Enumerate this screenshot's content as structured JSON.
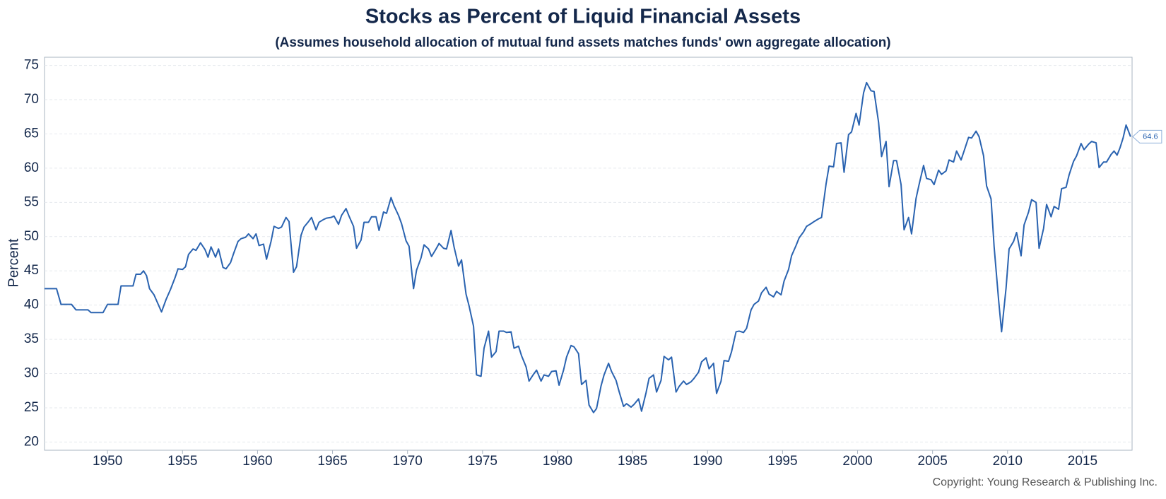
{
  "chart_data": {
    "type": "line",
    "title": "Stocks as Percent of Liquid Financial Assets",
    "subtitle": "(Assumes household allocation of mutual fund assets matches funds' own aggregate allocation)",
    "y_label": "Percent",
    "copyright": "Copyright: Young Research & Publishing Inc.",
    "xlim": [
      1945.8,
      2018.3
    ],
    "xticks": [
      1950,
      1955,
      1960,
      1965,
      1970,
      1975,
      1980,
      1985,
      1990,
      1995,
      2000,
      2005,
      2010,
      2015
    ],
    "ylim": [
      18.8,
      76.2
    ],
    "yticks": [
      20,
      25,
      30,
      35,
      40,
      45,
      50,
      55,
      60,
      65,
      70,
      75
    ],
    "grid": true,
    "series": [
      {
        "name": "Stocks as Percent of Liquid Financial Assets",
        "color": "#2a63b0",
        "x": [
          1945.8,
          1946.6,
          1946.9,
          1947.6,
          1947.9,
          1948.7,
          1948.9,
          1949.7,
          1950,
          1950.7,
          1950.9,
          1951.7,
          1951.9,
          1952.2,
          1952.4,
          1952.6,
          1952.8,
          1953.1,
          1953.4,
          1953.6,
          1953.9,
          1954.2,
          1954.5,
          1954.7,
          1955,
          1955.2,
          1955.4,
          1955.7,
          1955.9,
          1956.2,
          1956.5,
          1956.7,
          1956.9,
          1957.2,
          1957.4,
          1957.7,
          1957.9,
          1958.2,
          1958.4,
          1958.7,
          1958.9,
          1959.2,
          1959.4,
          1959.7,
          1959.9,
          1960.1,
          1960.4,
          1960.6,
          1960.9,
          1961.1,
          1961.4,
          1961.6,
          1961.9,
          1962.1,
          1962.4,
          1962.6,
          1962.9,
          1963.1,
          1963.4,
          1963.6,
          1963.9,
          1964.1,
          1964.4,
          1964.6,
          1964.9,
          1965.1,
          1965.4,
          1965.6,
          1965.9,
          1966.1,
          1966.4,
          1966.6,
          1966.9,
          1967.1,
          1967.4,
          1967.6,
          1967.9,
          1968.1,
          1968.4,
          1968.6,
          1968.9,
          1969.1,
          1969.4,
          1969.6,
          1969.9,
          1970.1,
          1970.4,
          1970.6,
          1970.9,
          1971.1,
          1971.4,
          1971.6,
          1971.9,
          1972.1,
          1972.4,
          1972.6,
          1972.9,
          1973.1,
          1973.4,
          1973.6,
          1973.9,
          1974.1,
          1974.4,
          1974.6,
          1974.9,
          1975.1,
          1975.4,
          1975.6,
          1975.9,
          1976.1,
          1976.4,
          1976.6,
          1976.9,
          1977.1,
          1977.4,
          1977.6,
          1977.9,
          1978.1,
          1978.4,
          1978.6,
          1978.9,
          1979.1,
          1979.4,
          1979.6,
          1979.9,
          1980.1,
          1980.4,
          1980.6,
          1980.9,
          1981.1,
          1981.4,
          1981.6,
          1981.9,
          1982.1,
          1982.4,
          1982.6,
          1982.9,
          1983.1,
          1983.4,
          1983.6,
          1983.9,
          1984.1,
          1984.4,
          1984.6,
          1984.9,
          1985.1,
          1985.4,
          1985.6,
          1985.9,
          1986.1,
          1986.4,
          1986.6,
          1986.9,
          1987.1,
          1987.4,
          1987.6,
          1987.9,
          1988.1,
          1988.4,
          1988.6,
          1988.9,
          1989.1,
          1989.4,
          1989.6,
          1989.9,
          1990.1,
          1990.4,
          1990.6,
          1990.9,
          1991.1,
          1991.4,
          1991.6,
          1991.9,
          1992.1,
          1992.4,
          1992.6,
          1992.9,
          1993.1,
          1993.4,
          1993.6,
          1993.9,
          1994.1,
          1994.4,
          1994.6,
          1994.9,
          1995.1,
          1995.4,
          1995.6,
          1995.9,
          1996.1,
          1996.4,
          1996.6,
          1996.9,
          1997.1,
          1997.4,
          1997.6,
          1997.9,
          1998.1,
          1998.4,
          1998.6,
          1998.9,
          1999.1,
          1999.4,
          1999.6,
          1999.9,
          2000.1,
          2000.4,
          2000.6,
          2000.9,
          2001.1,
          2001.4,
          2001.6,
          2001.9,
          2002.1,
          2002.4,
          2002.6,
          2002.9,
          2003.1,
          2003.4,
          2003.6,
          2003.9,
          2004.1,
          2004.4,
          2004.6,
          2004.9,
          2005.1,
          2005.4,
          2005.6,
          2005.9,
          2006.1,
          2006.4,
          2006.6,
          2006.9,
          2007.1,
          2007.4,
          2007.6,
          2007.9,
          2008.1,
          2008.4,
          2008.6,
          2008.9,
          2009.1,
          2009.4,
          2009.6,
          2009.9,
          2010.1,
          2010.4,
          2010.6,
          2010.9,
          2011.1,
          2011.4,
          2011.6,
          2011.9,
          2012.1,
          2012.4,
          2012.6,
          2012.9,
          2013.1,
          2013.4,
          2013.6,
          2013.9,
          2014.1,
          2014.4,
          2014.6,
          2014.9,
          2015.1,
          2015.4,
          2015.6,
          2015.9,
          2016.1,
          2016.4,
          2016.6,
          2016.9,
          2017.1,
          2017.3,
          2017.5,
          2017.7,
          2017.9,
          2018.2
        ],
        "values": [
          42.4,
          42.4,
          40.1,
          40.1,
          39.3,
          39.3,
          38.9,
          38.9,
          40.1,
          40.1,
          42.8,
          42.8,
          44.5,
          44.5,
          45.0,
          44.3,
          42.4,
          41.5,
          40.0,
          39.0,
          40.8,
          42.3,
          44.0,
          45.3,
          45.2,
          45.6,
          47.4,
          48.2,
          48.0,
          49.1,
          48.1,
          47.0,
          48.5,
          47.0,
          48.2,
          45.5,
          45.3,
          46.2,
          47.5,
          49.3,
          49.7,
          49.9,
          50.4,
          49.7,
          50.4,
          48.7,
          48.9,
          46.7,
          49.3,
          51.5,
          51.2,
          51.4,
          52.8,
          52.2,
          44.8,
          45.6,
          50.2,
          51.4,
          52.2,
          52.8,
          51.0,
          52.1,
          52.5,
          52.7,
          52.8,
          53.0,
          51.8,
          53.1,
          54.1,
          53.0,
          51.5,
          48.3,
          49.5,
          52.1,
          52.1,
          52.9,
          52.9,
          50.9,
          53.6,
          53.4,
          55.7,
          54.5,
          53.1,
          51.9,
          49.4,
          48.6,
          42.4,
          45.1,
          46.9,
          48.8,
          48.2,
          47.1,
          48.2,
          49.0,
          48.3,
          48.2,
          50.9,
          48.5,
          45.7,
          46.6,
          41.6,
          39.9,
          36.9,
          29.8,
          29.6,
          33.7,
          36.2,
          32.4,
          33.2,
          36.2,
          36.2,
          36.0,
          36.1,
          33.7,
          34.0,
          32.6,
          31.0,
          28.9,
          29.9,
          30.5,
          28.9,
          29.8,
          29.6,
          30.3,
          30.4,
          28.3,
          30.5,
          32.4,
          34.1,
          33.9,
          32.9,
          28.4,
          29.0,
          25.4,
          24.3,
          24.9,
          28.2,
          29.8,
          31.5,
          30.3,
          29.0,
          27.4,
          25.2,
          25.6,
          25.1,
          25.5,
          26.3,
          24.5,
          27.2,
          29.3,
          29.8,
          27.3,
          29.0,
          32.5,
          32.0,
          32.4,
          27.3,
          28.1,
          28.9,
          28.4,
          28.8,
          29.3,
          30.2,
          31.7,
          32.3,
          30.7,
          31.5,
          27.1,
          28.9,
          31.9,
          31.8,
          33.2,
          36.1,
          36.2,
          36.0,
          36.6,
          39.3,
          40.1,
          40.6,
          41.8,
          42.6,
          41.6,
          41.2,
          42.0,
          41.5,
          43.5,
          45.2,
          47.2,
          48.7,
          49.8,
          50.7,
          51.5,
          51.9,
          52.2,
          52.6,
          52.8,
          57.7,
          60.3,
          60.2,
          63.6,
          63.7,
          59.4,
          64.9,
          65.3,
          68.0,
          66.3,
          71.0,
          72.5,
          71.3,
          71.2,
          66.7,
          61.7,
          63.9,
          57.3,
          61.1,
          61.1,
          57.6,
          51.0,
          52.8,
          50.4,
          55.6,
          57.6,
          60.4,
          58.5,
          58.3,
          57.6,
          59.7,
          59.1,
          59.6,
          61.2,
          60.9,
          62.5,
          61.2,
          62.5,
          64.5,
          64.4,
          65.4,
          64.6,
          61.8,
          57.4,
          55.5,
          48.6,
          40.8,
          36.1,
          42.5,
          48.2,
          49.3,
          50.6,
          47.2,
          51.7,
          53.6,
          55.4,
          55.0,
          48.3,
          51.2,
          54.7,
          52.9,
          54.4,
          54.0,
          57.0,
          57.2,
          59.0,
          61.0,
          61.8,
          63.6,
          62.7,
          63.5,
          63.9,
          63.7,
          60.1,
          60.9,
          60.9,
          62.0,
          62.5,
          61.9,
          63.0,
          64.4,
          66.3,
          64.6
        ]
      }
    ]
  }
}
